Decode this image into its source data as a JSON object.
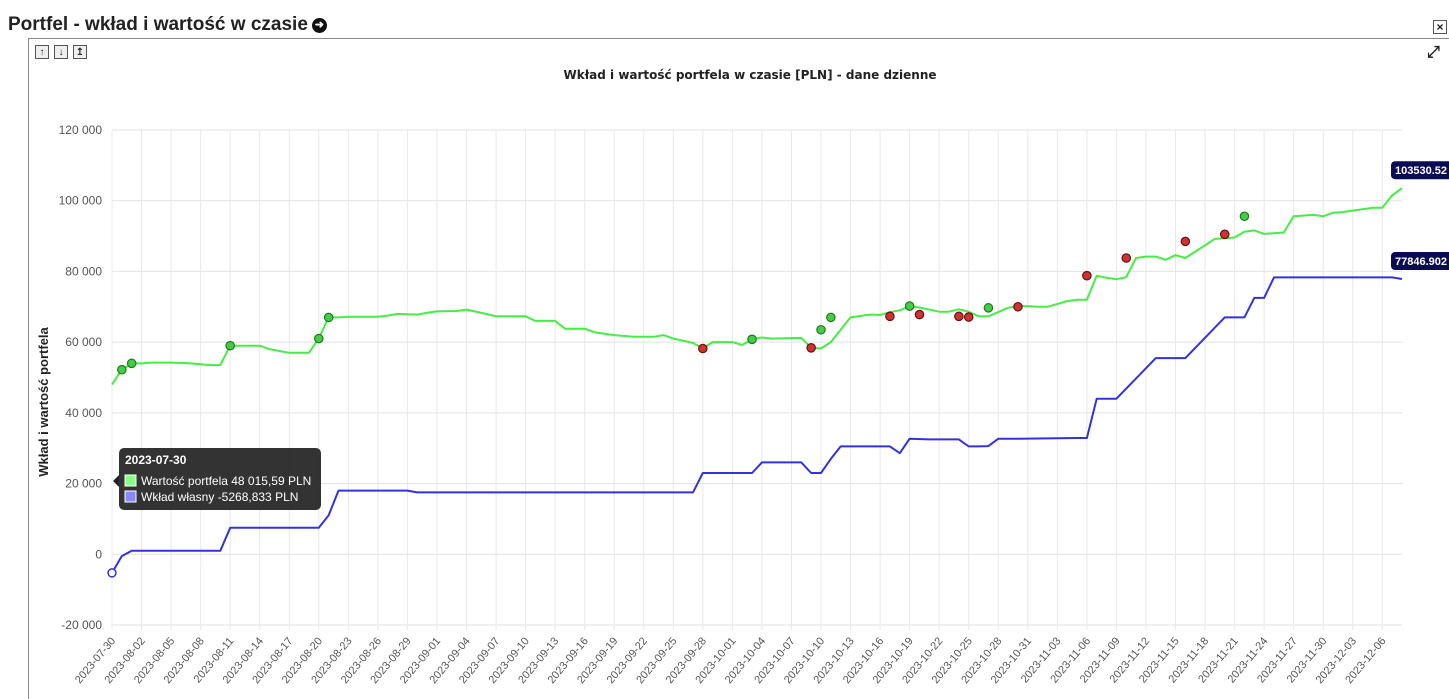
{
  "header": {
    "title": "Portfel - wkład i wartość w czasie",
    "close_label": "×"
  },
  "controls": {
    "up": "🠝",
    "down": "🠟",
    "top": "⤒",
    "expand": "⛶"
  },
  "colors": {
    "value_line": "#44ee44",
    "contribution_line": "#3333dd",
    "buy_marker": "#44cc44",
    "sell_marker": "#cc3333",
    "tag_bg": "#0a0a55"
  },
  "tooltip": {
    "date": "2023-07-30",
    "line1": "Wartość portfela 48 015,59  PLN",
    "line2": "Wkład własny -5268,833  PLN"
  },
  "last_values": {
    "value": "103530.52",
    "contribution": "77846.902"
  },
  "chart_data": {
    "type": "line",
    "title": "Wkład i wartość portfela w czasie [PLN] - dane dzienne",
    "xlabel": "",
    "ylabel": "Wkład i wartość portfela",
    "ylim": [
      -20000,
      120000
    ],
    "yticks": [
      -20000,
      0,
      20000,
      40000,
      60000,
      80000,
      100000,
      120000
    ],
    "ytick_labels": [
      "-20 000",
      "0",
      "20 000",
      "40 000",
      "60 000",
      "80 000",
      "100 000",
      "120 000"
    ],
    "x_start": "2023-07-30",
    "x_end": "2023-12-08",
    "x_tick_labels": [
      "2023-07-30",
      "2023-08-02",
      "2023-08-05",
      "2023-08-08",
      "2023-08-11",
      "2023-08-14",
      "2023-08-17",
      "2023-08-20",
      "2023-08-23",
      "2023-08-26",
      "2023-08-29",
      "2023-09-01",
      "2023-09-04",
      "2023-09-07",
      "2023-09-10",
      "2023-09-13",
      "2023-09-16",
      "2023-09-19",
      "2023-09-22",
      "2023-09-25",
      "2023-09-28",
      "2023-10-01",
      "2023-10-04",
      "2023-10-07",
      "2023-10-10",
      "2023-10-13",
      "2023-10-16",
      "2023-10-19",
      "2023-10-22",
      "2023-10-25",
      "2023-10-28",
      "2023-10-31",
      "2023-11-03",
      "2023-11-06",
      "2023-11-09",
      "2023-11-12",
      "2023-11-15",
      "2023-11-18",
      "2023-11-21",
      "2023-11-24",
      "2023-11-27",
      "2023-11-30",
      "2023-12-03",
      "2023-12-06"
    ],
    "grid": true,
    "legend": "none",
    "series": [
      {
        "name": "Wartość portfela",
        "x": [
          "2023-07-30",
          "2023-07-31",
          "2023-08-01",
          "2023-08-02",
          "2023-08-03",
          "2023-08-05",
          "2023-08-07",
          "2023-08-09",
          "2023-08-10",
          "2023-08-11",
          "2023-08-13",
          "2023-08-14",
          "2023-08-15",
          "2023-08-16",
          "2023-08-17",
          "2023-08-18",
          "2023-08-19",
          "2023-08-20",
          "2023-08-21",
          "2023-08-22",
          "2023-08-23",
          "2023-08-26",
          "2023-08-27",
          "2023-08-28",
          "2023-08-30",
          "2023-08-31",
          "2023-09-01",
          "2023-09-03",
          "2023-09-04",
          "2023-09-06",
          "2023-09-07",
          "2023-09-10",
          "2023-09-11",
          "2023-09-13",
          "2023-09-14",
          "2023-09-16",
          "2023-09-17",
          "2023-09-19",
          "2023-09-21",
          "2023-09-23",
          "2023-09-24",
          "2023-09-25",
          "2023-09-27",
          "2023-09-28",
          "2023-09-29",
          "2023-10-01",
          "2023-10-02",
          "2023-10-03",
          "2023-10-04",
          "2023-10-05",
          "2023-10-08",
          "2023-10-09",
          "2023-10-10",
          "2023-10-11",
          "2023-10-12",
          "2023-10-13",
          "2023-10-15",
          "2023-10-16",
          "2023-10-17",
          "2023-10-18",
          "2023-10-19",
          "2023-10-20",
          "2023-10-22",
          "2023-10-23",
          "2023-10-24",
          "2023-10-25",
          "2023-10-26",
          "2023-10-27",
          "2023-10-29",
          "2023-10-30",
          "2023-10-31",
          "2023-11-01",
          "2023-11-02",
          "2023-11-04",
          "2023-11-05",
          "2023-11-06",
          "2023-11-07",
          "2023-11-08",
          "2023-11-09",
          "2023-11-10",
          "2023-11-11",
          "2023-11-12",
          "2023-11-13",
          "2023-11-14",
          "2023-11-15",
          "2023-11-16",
          "2023-11-19",
          "2023-11-20",
          "2023-11-21",
          "2023-11-22",
          "2023-11-23",
          "2023-11-24",
          "2023-11-26",
          "2023-11-27",
          "2023-11-29",
          "2023-11-30",
          "2023-12-01",
          "2023-12-02",
          "2023-12-04",
          "2023-12-05",
          "2023-12-06",
          "2023-12-07",
          "2023-12-08"
        ],
        "values": [
          48016,
          52200,
          54000,
          54000,
          54200,
          54200,
          54000,
          53500,
          53500,
          59000,
          59000,
          59000,
          58000,
          57500,
          57000,
          57000,
          57000,
          61000,
          67000,
          67000,
          67200,
          67200,
          67500,
          68000,
          67800,
          68300,
          68700,
          68800,
          69200,
          68000,
          67300,
          67300,
          66000,
          66000,
          63800,
          63800,
          62800,
          62000,
          61500,
          61500,
          62000,
          61000,
          59800,
          58200,
          60000,
          60000,
          59200,
          60800,
          61300,
          61000,
          61200,
          58400,
          58200,
          60000,
          63500,
          67000,
          67800,
          67700,
          68500,
          69000,
          70200,
          69800,
          68600,
          68600,
          69300,
          68600,
          67300,
          67300,
          69700,
          70200,
          70200,
          70000,
          70000,
          71600,
          72000,
          72000,
          78800,
          78200,
          77800,
          78400,
          83800,
          84200,
          84200,
          83300,
          84600,
          83800,
          89200,
          89400,
          89600,
          91200,
          91600,
          90600,
          91000,
          95600,
          96000,
          95600,
          96600,
          96800,
          97600,
          98000,
          98000,
          101500,
          103530.52
        ]
      },
      {
        "name": "Wkład własny",
        "x": [
          "2023-07-30",
          "2023-07-31",
          "2023-08-01",
          "2023-08-02",
          "2023-08-10",
          "2023-08-11",
          "2023-08-20",
          "2023-08-21",
          "2023-08-22",
          "2023-08-29",
          "2023-08-30",
          "2023-09-27",
          "2023-09-28",
          "2023-10-02",
          "2023-10-03",
          "2023-10-04",
          "2023-10-08",
          "2023-10-09",
          "2023-10-10",
          "2023-10-11",
          "2023-10-12",
          "2023-10-17",
          "2023-10-18",
          "2023-10-19",
          "2023-10-21",
          "2023-10-24",
          "2023-10-25",
          "2023-10-26",
          "2023-10-27",
          "2023-10-28",
          "2023-10-30",
          "2023-11-05",
          "2023-11-06",
          "2023-11-07",
          "2023-11-08",
          "2023-11-09",
          "2023-11-13",
          "2023-11-14",
          "2023-11-15",
          "2023-11-16",
          "2023-11-20",
          "2023-11-21",
          "2023-11-22",
          "2023-11-23",
          "2023-11-24",
          "2023-11-25",
          "2023-12-06",
          "2023-12-07",
          "2023-12-08"
        ],
        "values": [
          -5268.833,
          -500,
          1000,
          1000,
          1000,
          7500,
          7500,
          11000,
          18000,
          18000,
          17500,
          17500,
          23000,
          23000,
          23000,
          26000,
          26000,
          23000,
          23000,
          27000,
          30500,
          30500,
          28600,
          32700,
          32500,
          32500,
          30500,
          30500,
          30600,
          32700,
          32700,
          32900,
          32900,
          44000,
          44000,
          44000,
          55500,
          55500,
          55500,
          55500,
          67000,
          67000,
          67000,
          72500,
          72500,
          78300,
          78300,
          78300,
          77846.902
        ]
      }
    ],
    "markers": {
      "buy": [
        {
          "x": "2023-07-31",
          "y": 52200
        },
        {
          "x": "2023-08-01",
          "y": 54000
        },
        {
          "x": "2023-08-11",
          "y": 59000
        },
        {
          "x": "2023-08-20",
          "y": 61000
        },
        {
          "x": "2023-08-21",
          "y": 67000
        },
        {
          "x": "2023-10-03",
          "y": 60800
        },
        {
          "x": "2023-10-10",
          "y": 63500
        },
        {
          "x": "2023-10-11",
          "y": 67000
        },
        {
          "x": "2023-10-19",
          "y": 70200
        },
        {
          "x": "2023-10-27",
          "y": 69700
        },
        {
          "x": "2023-11-22",
          "y": 95600
        }
      ],
      "sell": [
        {
          "x": "2023-09-28",
          "y": 58200
        },
        {
          "x": "2023-10-09",
          "y": 58400
        },
        {
          "x": "2023-10-17",
          "y": 67300
        },
        {
          "x": "2023-10-20",
          "y": 67800
        },
        {
          "x": "2023-10-24",
          "y": 67300
        },
        {
          "x": "2023-10-25",
          "y": 67100
        },
        {
          "x": "2023-10-30",
          "y": 70000
        },
        {
          "x": "2023-11-06",
          "y": 78800
        },
        {
          "x": "2023-11-10",
          "y": 83800
        },
        {
          "x": "2023-11-16",
          "y": 88500
        },
        {
          "x": "2023-11-20",
          "y": 90500
        }
      ]
    }
  }
}
